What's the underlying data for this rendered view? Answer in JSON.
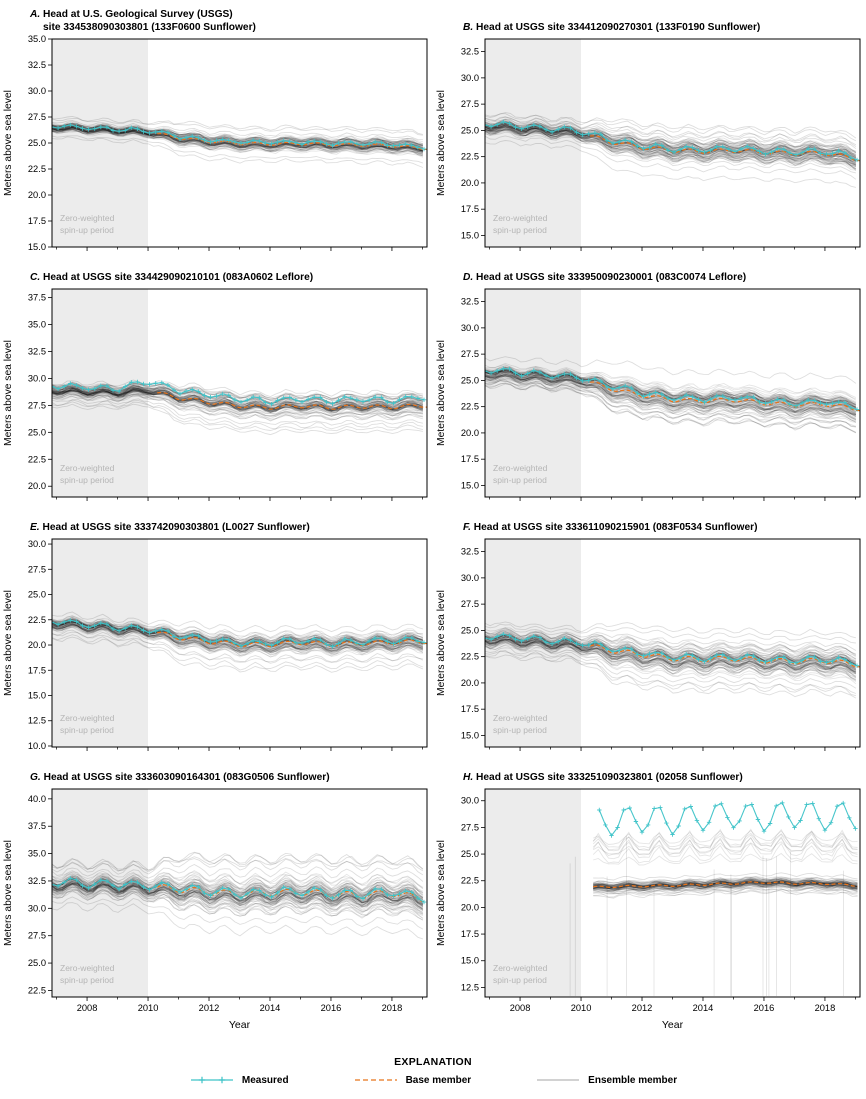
{
  "figure": {
    "ylabel": "Meters above sea level",
    "spinup_label_line1": "Zero-weighted",
    "spinup_label_line2": "spin-up period",
    "explanation": {
      "title": "EXPLANATION",
      "items": [
        {
          "label": "Measured"
        },
        {
          "label": "Base member"
        },
        {
          "label": "Ensemble member"
        }
      ]
    },
    "colors": {
      "measured": "#3ec3c8",
      "base": "#e8731a",
      "ensemble": "#000000",
      "spinup_fill": "#ececec",
      "spinup_text": "#b5b5b5",
      "axis": "#000000",
      "background": "#ffffff"
    }
  },
  "chart_data": {
    "type": "line",
    "x_axis": {
      "label": "Year",
      "min": 2006.85,
      "max": 2019.15,
      "major_ticks": [
        2008,
        2010,
        2012,
        2014,
        2016,
        2018
      ],
      "minor_ticks": [
        2007,
        2009,
        2011,
        2013,
        2015,
        2017,
        2019
      ]
    },
    "spinup_end": 2010,
    "years": [
      2007,
      2008,
      2009,
      2010,
      2011,
      2012,
      2013,
      2014,
      2015,
      2016,
      2017,
      2018,
      2019
    ],
    "panels": [
      {
        "letter": "A.",
        "title_lines": [
          "Head at U.S. Geological Survey (USGS)",
          "site 334538090303801 (133F0600 Sunflower)"
        ],
        "ylim": [
          15.0,
          35.0
        ],
        "yticks": {
          "min": 15.0,
          "max": 35.0,
          "step": 2.5
        },
        "center": [
          26.5,
          26.35,
          26.2,
          26.05,
          25.5,
          25.15,
          24.95,
          24.9,
          24.95,
          24.85,
          24.8,
          24.75,
          24.5
        ],
        "measured": [
          26.65,
          26.45,
          26.3,
          26.2,
          25.65,
          25.3,
          25.1,
          25.05,
          25.1,
          25.0,
          24.95,
          24.9,
          24.6
        ],
        "measured_amp": 0.18,
        "seasonal_amp": 0.15,
        "base_offset": 0.0,
        "base_start": 2010.3,
        "ensemble": {
          "count": 80,
          "sigma": 0.35,
          "outliers": 5,
          "spinup_factor": 0.6
        },
        "seed": 101,
        "show_x_labels": false
      },
      {
        "letter": "B.",
        "title_lines": [
          "Head at USGS site 334412090270301 (133F0190 Sunflower)"
        ],
        "ylim": [
          13.9,
          33.7
        ],
        "yticks": {
          "min": 15.0,
          "max": 32.5,
          "step": 2.5
        },
        "center": [
          25.35,
          25.15,
          24.95,
          24.7,
          23.9,
          23.4,
          23.1,
          23.0,
          23.1,
          22.9,
          22.8,
          22.85,
          22.3
        ],
        "measured": [
          25.6,
          25.4,
          25.15,
          24.9,
          24.1,
          23.55,
          23.25,
          23.15,
          23.3,
          23.05,
          22.95,
          23.0,
          22.5
        ],
        "measured_amp": 0.28,
        "seasonal_amp": 0.22,
        "base_offset": 0.0,
        "base_start": 2010.3,
        "ensemble": {
          "count": 85,
          "sigma": 0.5,
          "outliers": 8,
          "spinup_factor": 0.55
        },
        "seed": 102,
        "show_x_labels": false
      },
      {
        "letter": "C.",
        "title_lines": [
          "Head at USGS site 334429090210101 (083A0602 Leflore)"
        ],
        "ylim": [
          19.0,
          38.3
        ],
        "yticks": {
          "min": 20.0,
          "max": 37.5,
          "step": 2.5
        },
        "center": [
          28.9,
          28.8,
          28.7,
          28.95,
          28.3,
          27.9,
          27.55,
          27.4,
          27.55,
          27.4,
          27.5,
          27.45,
          27.6
        ],
        "measured": [
          29.35,
          29.15,
          29.05,
          29.75,
          28.9,
          28.5,
          28.1,
          27.9,
          28.1,
          27.95,
          28.1,
          27.95,
          28.3
        ],
        "measured_amp": 0.25,
        "seasonal_amp": 0.2,
        "base_offset": -0.1,
        "base_start": 2010.3,
        "ensemble": {
          "count": 85,
          "sigma": 0.45,
          "outliers": 6,
          "spinup_factor": 0.6
        },
        "seed": 103,
        "show_x_labels": false
      },
      {
        "letter": "D.",
        "title_lines": [
          "Head at USGS site 333950090230001 (083C0074 Leflore)"
        ],
        "ylim": [
          13.9,
          33.7
        ],
        "yticks": {
          "min": 15.0,
          "max": 32.5,
          "step": 2.5
        },
        "center": [
          25.7,
          25.5,
          25.3,
          25.1,
          24.2,
          23.6,
          23.15,
          23.05,
          23.15,
          22.85,
          22.65,
          22.75,
          22.3
        ],
        "measured": [
          26.0,
          25.75,
          25.5,
          25.3,
          24.45,
          23.8,
          23.35,
          23.25,
          23.4,
          23.05,
          22.85,
          22.95,
          22.5
        ],
        "measured_amp": 0.28,
        "seasonal_amp": 0.22,
        "base_offset": 0.0,
        "base_start": 2010.3,
        "ensemble": {
          "count": 85,
          "sigma": 0.5,
          "outliers": 8,
          "spinup_factor": 0.55
        },
        "seed": 104,
        "show_x_labels": false
      },
      {
        "letter": "E.",
        "title_lines": [
          "Head at USGS site 333742090303801 (L0027 Sunflower)"
        ],
        "ylim": [
          9.9,
          30.5
        ],
        "yticks": {
          "min": 10.0,
          "max": 30.0,
          "step": 2.5
        },
        "center": [
          22.15,
          21.9,
          21.6,
          21.4,
          20.75,
          20.35,
          20.05,
          20.05,
          20.25,
          20.05,
          20.15,
          20.25,
          20.35
        ],
        "measured": [
          22.35,
          22.05,
          21.75,
          21.55,
          20.95,
          20.55,
          20.2,
          20.2,
          20.45,
          20.2,
          20.35,
          20.45,
          20.55
        ],
        "measured_amp": 0.3,
        "seasonal_amp": 0.25,
        "base_offset": 0.0,
        "base_start": 2010.3,
        "ensemble": {
          "count": 80,
          "sigma": 0.45,
          "outliers": 6,
          "spinup_factor": 0.6
        },
        "seed": 105,
        "show_x_labels": false
      },
      {
        "letter": "F.",
        "title_lines": [
          "Head at USGS site 333611090215901 (083F0534 Sunflower)"
        ],
        "ylim": [
          13.9,
          33.7
        ],
        "yticks": {
          "min": 15.0,
          "max": 32.5,
          "step": 2.5
        },
        "center": [
          24.25,
          24.05,
          23.85,
          23.65,
          23.05,
          22.65,
          22.3,
          22.2,
          22.3,
          22.1,
          22.0,
          22.1,
          21.7
        ],
        "measured": [
          24.45,
          24.25,
          24.05,
          23.85,
          23.25,
          22.85,
          22.45,
          22.35,
          22.5,
          22.25,
          22.15,
          22.25,
          21.9
        ],
        "measured_amp": 0.3,
        "seasonal_amp": 0.28,
        "base_offset": 0.05,
        "base_start": 2010.3,
        "ensemble": {
          "count": 85,
          "sigma": 0.55,
          "outliers": 8,
          "spinup_factor": 0.55
        },
        "seed": 106,
        "show_x_labels": false
      },
      {
        "letter": "G.",
        "title_lines": [
          "Head at USGS site 333603090164301 (083G0506 Sunflower)"
        ],
        "ylim": [
          21.9,
          40.9
        ],
        "yticks": {
          "min": 22.5,
          "max": 40.0,
          "step": 2.5
        },
        "center": [
          32.2,
          32.1,
          32.0,
          31.9,
          31.65,
          31.4,
          31.2,
          31.3,
          31.4,
          31.2,
          31.1,
          31.3,
          30.8
        ],
        "measured": [
          32.4,
          32.3,
          32.2,
          32.1,
          31.85,
          31.6,
          31.35,
          31.45,
          31.6,
          31.35,
          31.3,
          31.5,
          31.0
        ],
        "measured_amp": 0.4,
        "seasonal_amp": 0.35,
        "base_offset": 0.1,
        "base_start": 2010.3,
        "ensemble": {
          "count": 85,
          "sigma": 0.6,
          "outliers": 8,
          "spinup_factor": 0.6
        },
        "seed": 107,
        "show_x_labels": true
      },
      {
        "letter": "H.",
        "title_lines": [
          "Head at USGS site 333251090323801 (02058 Sunflower)"
        ],
        "ylim": [
          11.6,
          31.1
        ],
        "yticks": {
          "min": 12.5,
          "max": 30.0,
          "step": 2.5
        },
        "center": [
          21.85,
          21.85,
          21.85,
          21.8,
          21.9,
          21.95,
          22.0,
          22.1,
          22.2,
          22.3,
          22.2,
          22.2,
          22.0
        ],
        "measured": [
          null,
          null,
          null,
          null,
          28.0,
          28.4,
          28.1,
          28.5,
          28.7,
          28.4,
          28.8,
          28.5,
          28.7
        ],
        "measured_amp": 1.3,
        "measured_start": 2010.6,
        "seasonal_amp": 0.1,
        "base_offset": 0.05,
        "base_start": 2010.4,
        "ensemble": {
          "count": 75,
          "sigma": 0.25,
          "outliers": 3,
          "spinup_factor": 1
        },
        "ensemble_start": 2010.4,
        "vertical_drops": 14,
        "extra_groups": [
          {
            "count": 9,
            "offset": 2.0,
            "spread": 2.4,
            "amp": 1.15,
            "opacity": 0.1
          }
        ],
        "seed": 108,
        "show_x_labels": true
      }
    ]
  }
}
